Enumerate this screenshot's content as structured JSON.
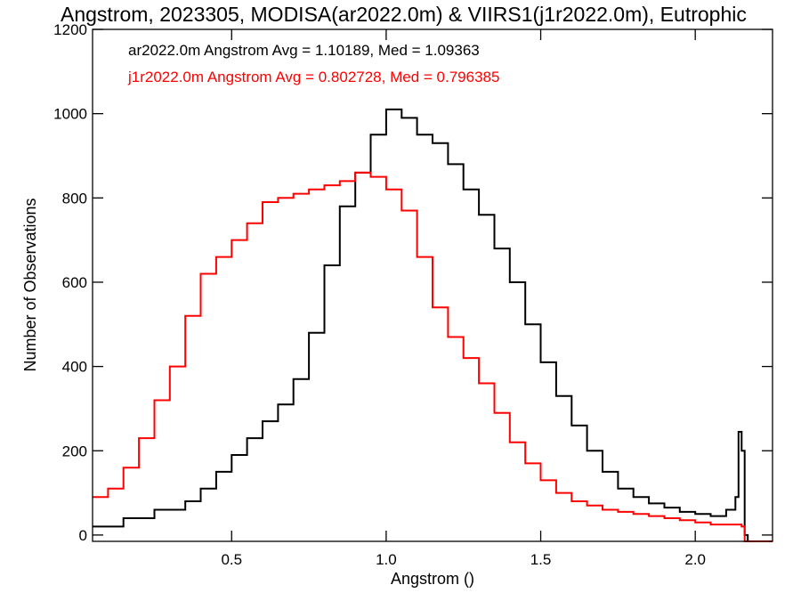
{
  "chart_data": {
    "type": "line",
    "title": "Angstrom, 2023305, MODISA(ar2022.0m) & VIIRS1(j1r2022.0m), Eutrophic",
    "xlabel": "Angstrom ()",
    "ylabel": "Number of Observations",
    "xlim": [
      0.05,
      2.25
    ],
    "ylim": [
      -15,
      1200
    ],
    "xticks": [
      0.5,
      1.0,
      1.5,
      2.0
    ],
    "xtick_labels": [
      "0.5",
      "1.0",
      "1.5",
      "2.0"
    ],
    "yticks": [
      0,
      200,
      400,
      600,
      800,
      1000,
      1200
    ],
    "ytick_labels": [
      "0",
      "200",
      "400",
      "600",
      "800",
      "1000",
      "1200"
    ],
    "grid": false,
    "legend": "annotations, top-left",
    "annotations": [
      {
        "text": "ar2022.0m Angstrom Avg = 1.10189, Med = 1.09363",
        "color": "#000000"
      },
      {
        "text": "j1r2022.0m Angstrom Avg = 0.802728, Med = 0.796385",
        "color": "#ff0000"
      }
    ],
    "series": [
      {
        "color": "#000000",
        "x": [
          0.05,
          0.15,
          0.25,
          0.35,
          0.4,
          0.45,
          0.5,
          0.55,
          0.6,
          0.65,
          0.7,
          0.75,
          0.8,
          0.85,
          0.9,
          0.95,
          1.0,
          1.05,
          1.1,
          1.15,
          1.2,
          1.25,
          1.3,
          1.35,
          1.4,
          1.45,
          1.5,
          1.55,
          1.6,
          1.65,
          1.7,
          1.75,
          1.8,
          1.85,
          1.9,
          1.95,
          2.0,
          2.05,
          2.1,
          2.13,
          2.14,
          2.15,
          2.16,
          2.17,
          2.25
        ],
        "y": [
          20,
          40,
          60,
          80,
          110,
          150,
          190,
          230,
          270,
          310,
          370,
          480,
          640,
          780,
          860,
          950,
          1010,
          990,
          950,
          930,
          880,
          820,
          760,
          680,
          600,
          500,
          410,
          330,
          260,
          200,
          150,
          110,
          90,
          75,
          65,
          55,
          50,
          45,
          60,
          90,
          245,
          200,
          0,
          -15,
          -15
        ]
      },
      {
        "color": "#ff0000",
        "x": [
          0.05,
          0.1,
          0.15,
          0.2,
          0.25,
          0.3,
          0.35,
          0.4,
          0.45,
          0.5,
          0.55,
          0.6,
          0.65,
          0.7,
          0.75,
          0.8,
          0.85,
          0.9,
          0.95,
          1.0,
          1.05,
          1.1,
          1.15,
          1.2,
          1.25,
          1.3,
          1.35,
          1.4,
          1.45,
          1.5,
          1.55,
          1.6,
          1.65,
          1.7,
          1.75,
          1.8,
          1.85,
          1.9,
          1.95,
          2.0,
          2.05,
          2.1,
          2.15,
          2.16,
          2.17,
          2.25
        ],
        "y": [
          90,
          110,
          160,
          230,
          320,
          400,
          520,
          620,
          660,
          700,
          740,
          790,
          800,
          810,
          820,
          830,
          840,
          860,
          850,
          820,
          770,
          660,
          540,
          470,
          420,
          360,
          290,
          220,
          170,
          130,
          100,
          80,
          70,
          60,
          55,
          50,
          45,
          40,
          35,
          30,
          25,
          25,
          20,
          -15,
          -15,
          -15
        ]
      }
    ]
  }
}
